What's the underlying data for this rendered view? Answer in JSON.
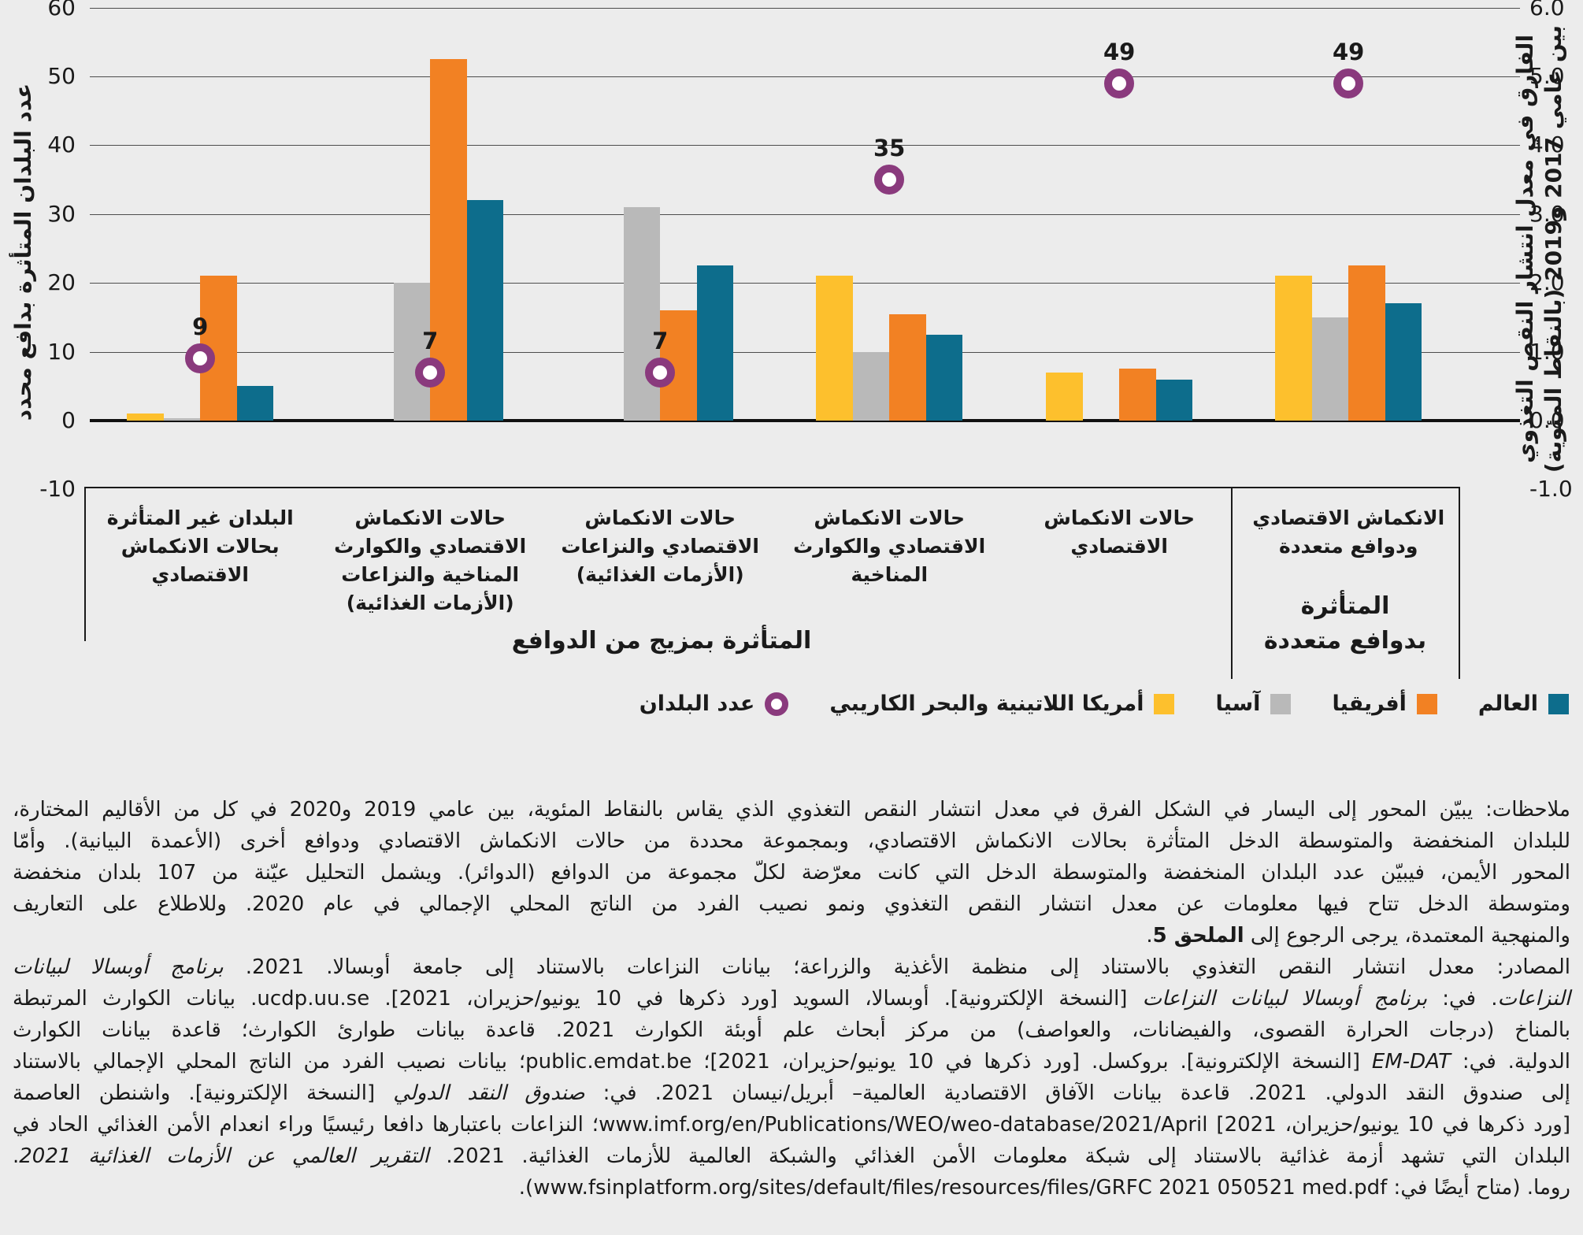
{
  "colors": {
    "background": "#ECECEC",
    "world_teal": "#0D6D8C",
    "africa_orange": "#F28123",
    "asia_gray": "#B9B9B9",
    "lac_yellow": "#FDC02D",
    "circle_purple": "#8A3A7D",
    "text": "#1A1A1A",
    "gridline": "#4D4D4D"
  },
  "left_axis": {
    "title": "عدد البلدان المتأثرة بدافع محدد",
    "grid_values": [
      60,
      50,
      40,
      30,
      20,
      10
    ],
    "ticks": [
      {
        "value": 60,
        "label": "60"
      },
      {
        "value": 50,
        "label": "50"
      },
      {
        "value": 40,
        "label": "40"
      },
      {
        "value": 30,
        "label": "30"
      },
      {
        "value": 20,
        "label": "20"
      },
      {
        "value": 10,
        "label": "10"
      },
      {
        "value": 0,
        "label": "0"
      },
      {
        "value": -10,
        "label": "-10"
      }
    ]
  },
  "right_axis": {
    "title_line1": "الفارق في معدل انتشار النقص التغذوي",
    "title_line2": "بين عامي 2017 و2019 (بالنقاط المئوية)",
    "ticks": [
      {
        "value": 60,
        "label": "6.0"
      },
      {
        "value": 50,
        "label": "5.0"
      },
      {
        "value": 40,
        "label": "4.0"
      },
      {
        "value": 30,
        "label": "3.0"
      },
      {
        "value": 20,
        "label": "2.0"
      },
      {
        "value": 10,
        "label": "1.0"
      },
      {
        "value": 0,
        "label": "0.0"
      },
      {
        "value": -10,
        "label": "-1.0"
      }
    ]
  },
  "chart_data": {
    "type": "bar",
    "layout_note": "RTL figure: groups listed here left-to-right on screen; reading order is right-to-left. Bars on left axis (number of countries), circles = number of countries exposed, drawn against right axis (value/10 percentage points).",
    "left_ylim": [
      -10,
      60
    ],
    "right_ylim": [
      -1.0,
      6.0
    ],
    "grid": "horizontal",
    "categories": [
      "البلدان غير المتأثرة بحالات الانكماش الاقتصادي",
      "حالات الانكماش الاقتصادي والكوارث المناخية والنزاعات (الأزمات الغذائية)",
      "حالات الانكماش الاقتصادي والنزاعات (الأزمات الغذائية)",
      "حالات الانكماش الاقتصادي والكوارث المناخية",
      "حالات الانكماش الاقتصادي",
      "الانكماش الاقتصادي ودوافع متعددة"
    ],
    "category_lines": [
      [
        "البلدان غير المتأثرة",
        "بحالات الانكماش",
        "الاقتصادي"
      ],
      [
        "حالات الانكماش",
        "الاقتصادي والكوارث",
        "المناخية والنزاعات",
        "(الأزمات الغذائية)"
      ],
      [
        "حالات الانكماش",
        "الاقتصادي والنزاعات",
        "(الأزمات الغذائية)"
      ],
      [
        "حالات الانكماش",
        "الاقتصادي والكوارث",
        "المناخية"
      ],
      [
        "حالات الانكماش",
        "الاقتصادي"
      ],
      [
        "الانكماش الاقتصادي",
        "ودوافع متعددة"
      ]
    ],
    "series": [
      {
        "name": "العالم",
        "color_key": "world_teal",
        "values": [
          5,
          32,
          22.5,
          12.5,
          6,
          17
        ]
      },
      {
        "name": "أفريقيا",
        "color_key": "africa_orange",
        "values": [
          21,
          52.5,
          16,
          15.5,
          7.5,
          22.5
        ]
      },
      {
        "name": "آسيا",
        "color_key": "asia_gray",
        "values": [
          0.3,
          20,
          31,
          10,
          0,
          15
        ]
      },
      {
        "name": "أمريكا اللاتينية والبحر الكاريبي",
        "color_key": "lac_yellow",
        "values": [
          1,
          0,
          0,
          21,
          7,
          21
        ]
      }
    ],
    "point_series": {
      "name": "عدد البلدان",
      "values": [
        9,
        7,
        7,
        35,
        49,
        49
      ],
      "labels": [
        "9",
        "7",
        "7",
        "35",
        "49",
        "49"
      ]
    }
  },
  "legend": [
    {
      "label": "العالم",
      "marker": "square",
      "color_key": "world_teal"
    },
    {
      "label": "أفريقيا",
      "marker": "square",
      "color_key": "africa_orange"
    },
    {
      "label": "آسيا",
      "marker": "square",
      "color_key": "asia_gray"
    },
    {
      "label": "أمريكا اللاتينية والبحر الكاريبي",
      "marker": "square",
      "color_key": "lac_yellow"
    },
    {
      "label": "عدد البلدان",
      "marker": "ring",
      "color_key": "circle_purple"
    }
  ],
  "footer": {
    "mix_label": "المتأثرة بمزيج من الدوافع",
    "multi_label_line1": "المتأثرة",
    "multi_label_line2": "بدوافع متعددة"
  },
  "notes": {
    "lines": [
      {
        "end": false,
        "segs": [
          {
            "t": "ملاحظات: يبيّن المحور إلى اليسار في الشكل الفرق في معدل انتشار النقص التغذوي الذي يقاس بالنقاط المئوية، بين عامي 2019 و2020 في كل من الأقاليم المختارة،"
          }
        ]
      },
      {
        "end": false,
        "segs": [
          {
            "t": "للبلدان المنخفضة والمتوسطة الدخل المتأثرة بحالات الانكماش الاقتصادي، وبمجموعة محددة من حالات الانكماش الاقتصادي ودوافع أخرى (الأعمدة البيانية). وأمّا"
          }
        ]
      },
      {
        "end": false,
        "segs": [
          {
            "t": "المحور الأيمن، فيبيّن عدد البلدان المنخفضة والمتوسطة الدخل التي كانت معرّضة لكلّ مجموعة من الدوافع (الدوائر). ويشمل التحليل عيّنة من 107 بلدان منخفضة"
          }
        ]
      },
      {
        "end": false,
        "segs": [
          {
            "t": "ومتوسطة الدخل تتاح فيها معلومات عن معدل انتشار النقص التغذوي ونمو نصيب الفرد من الناتج المحلي الإجمالي في عام 2020. وللاطلاع على التعاريف"
          }
        ]
      },
      {
        "end": true,
        "segs": [
          {
            "t": "والمنهجية المعتمدة، يرجى الرجوع إلى "
          },
          {
            "t": "الملحق 5",
            "s": "b"
          },
          {
            "t": "."
          }
        ]
      },
      {
        "end": false,
        "segs": [
          {
            "t": "المصادر: معدل انتشار النقص التغذوي بالاستناد إلى منظمة الأغذية والزراعة؛ بيانات النزاعات بالاستناد إلى جامعة أوبسالا. 2021. "
          },
          {
            "t": "برنامج أوبسالا لبيانات",
            "s": "i"
          }
        ]
      },
      {
        "end": false,
        "segs": [
          {
            "t": "النزاعات",
            "s": "i"
          },
          {
            "t": ". في: "
          },
          {
            "t": "برنامج أوبسالا لبيانات النزاعات",
            "s": "i"
          },
          {
            "t": " [النسخة الإلكترونية]. أوبسالا، السويد [ورد ذكرها في 10 يونيو/حزيران، 2021]. "
          },
          {
            "t": "ucdp.uu.se",
            "s": "m"
          },
          {
            "t": ". بيانات الكوارث المرتبطة"
          }
        ]
      },
      {
        "end": false,
        "segs": [
          {
            "t": "بالمناخ (درجات الحرارة القصوى، والفيضانات، والعواصف) من مركز أبحاث علم أوبئة الكوارث 2021. قاعدة بيانات طوارئ الكوارث؛ قاعدة بيانات الكوارث"
          }
        ]
      },
      {
        "end": false,
        "segs": [
          {
            "t": "الدولية. في: "
          },
          {
            "t": "EM-DAT",
            "s": "im"
          },
          {
            "t": " [النسخة الإلكترونية]. بروكسل. [ورد ذكرها في 10 يونيو/حزيران، 2021]؛ "
          },
          {
            "t": "public.emdat.be",
            "s": "m"
          },
          {
            "t": "؛ بيانات نصيب الفرد من الناتج المحلي الإجمالي بالاستناد"
          }
        ]
      },
      {
        "end": false,
        "segs": [
          {
            "t": "إلى صندوق النقد الدولي. 2021. قاعدة بيانات الآفاق الاقتصادية العالمية– أبريل/نيسان 2021. في: "
          },
          {
            "t": "صندوق النقد الدولي",
            "s": "i"
          },
          {
            "t": " [النسخة الإلكترونية]. واشنطن العاصمة"
          }
        ]
      },
      {
        "end": false,
        "segs": [
          {
            "t": "[ورد ذكرها في 10 يونيو/حزيران، 2021] "
          },
          {
            "t": "www.imf.org/en/Publications/WEO/weo-database/2021/April",
            "s": "m"
          },
          {
            "t": "؛ النزاعات باعتبارها دافعا رئيسيًا وراء انعدام الأمن الغذائي الحاد في"
          }
        ]
      },
      {
        "end": false,
        "segs": [
          {
            "t": "البلدان التي تشهد أزمة غذائية بالاستناد إلى شبكة معلومات الأمن الغذائي والشبكة العالمية للأزمات الغذائية. 2021. "
          },
          {
            "t": "التقرير العالمي عن الأزمات الغذائية 2021",
            "s": "i"
          },
          {
            "t": "."
          }
        ]
      },
      {
        "end": true,
        "segs": [
          {
            "t": "روما. (متاح أيضًا في: "
          },
          {
            "t": "www.fsinplatform.org/sites/default/files/resources/files/GRFC 2021 050521 med.pdf",
            "s": "m"
          },
          {
            "t": ")."
          }
        ]
      }
    ]
  }
}
